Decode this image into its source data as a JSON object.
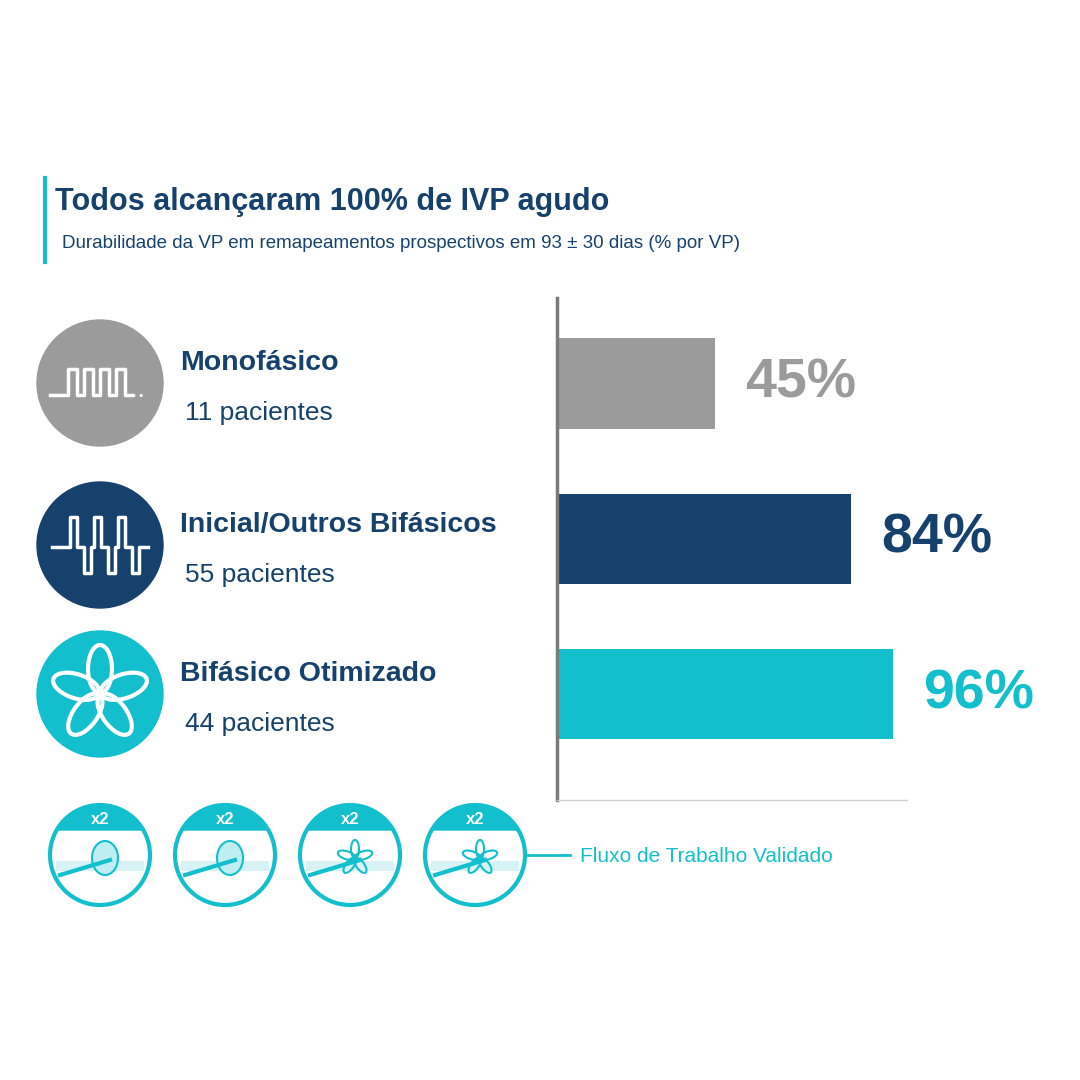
{
  "chart_data": {
    "type": "bar",
    "orientation": "horizontal",
    "title": "Todos alcançaram 100% de IVP agudo",
    "subtitle": "Durabilidade da VP em remapeamentos prospectivos em 93 ± 30 dias (% por VP)",
    "categories": [
      "Monofásico",
      "Inicial/Outros Bifásicos",
      "Bifásico Otimizado"
    ],
    "category_notes": [
      "11 pacientes",
      "55 pacientes",
      "44 pacientes"
    ],
    "values": [
      45,
      84,
      96
    ],
    "value_labels": [
      "45%",
      "84%",
      "96%"
    ],
    "colors": [
      "#9b9b9b",
      "#17416d",
      "#13bfcc"
    ],
    "data_labels": true,
    "tick_labels": false,
    "xlim": [
      0,
      100
    ],
    "xticks": [],
    "footer": {
      "steps": [
        "x2",
        "x2",
        "x2",
        "x2"
      ],
      "label": "Fluxo de Trabalho Validado"
    }
  }
}
